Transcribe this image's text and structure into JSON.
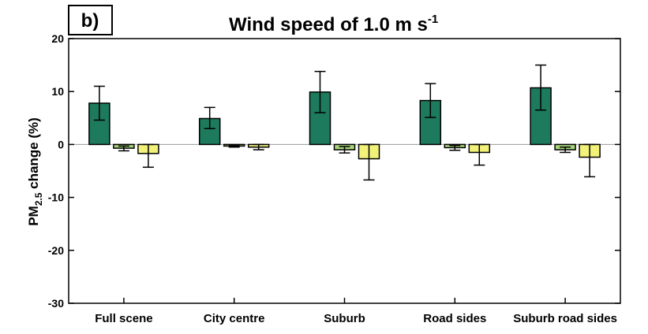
{
  "panel_label": "b)",
  "chart_data": {
    "type": "bar",
    "title": "Wind speed of 1.0 m s",
    "title_superscript": "-1",
    "ylabel_prefix": "PM",
    "ylabel_subscript": "2.5",
    "ylabel_suffix": " change (%)",
    "ylim": [
      -30,
      20
    ],
    "yticks": [
      20,
      10,
      0,
      -10,
      -20,
      -30
    ],
    "grid": false,
    "zero_line": true,
    "categories": [
      "Full scene",
      "City centre",
      "Suburb",
      "Road sides",
      "Suburb road sides"
    ],
    "series": [
      {
        "color": "#1d7a5c",
        "values": [
          7.8,
          4.9,
          9.9,
          8.3,
          10.7
        ],
        "err_low": [
          4.6,
          3.0,
          6.0,
          5.1,
          6.5
        ],
        "err_high": [
          11.0,
          7.0,
          13.8,
          11.5,
          15.0
        ]
      },
      {
        "color": "#a6d67a",
        "values": [
          -0.7,
          -0.3,
          -1.0,
          -0.6,
          -1.0
        ],
        "err_low": [
          -1.2,
          -0.5,
          -1.6,
          -1.1,
          -1.5
        ],
        "err_high": [
          -0.3,
          -0.1,
          -0.4,
          -0.2,
          -0.5
        ]
      },
      {
        "color": "#f2f27a",
        "values": [
          -1.7,
          -0.5,
          -2.7,
          -1.5,
          -2.4
        ],
        "err_low": [
          -4.3,
          -1.0,
          -6.7,
          -3.9,
          -6.1
        ],
        "err_high": [
          0.0,
          0.0,
          0.0,
          0.0,
          0.0
        ]
      }
    ]
  }
}
